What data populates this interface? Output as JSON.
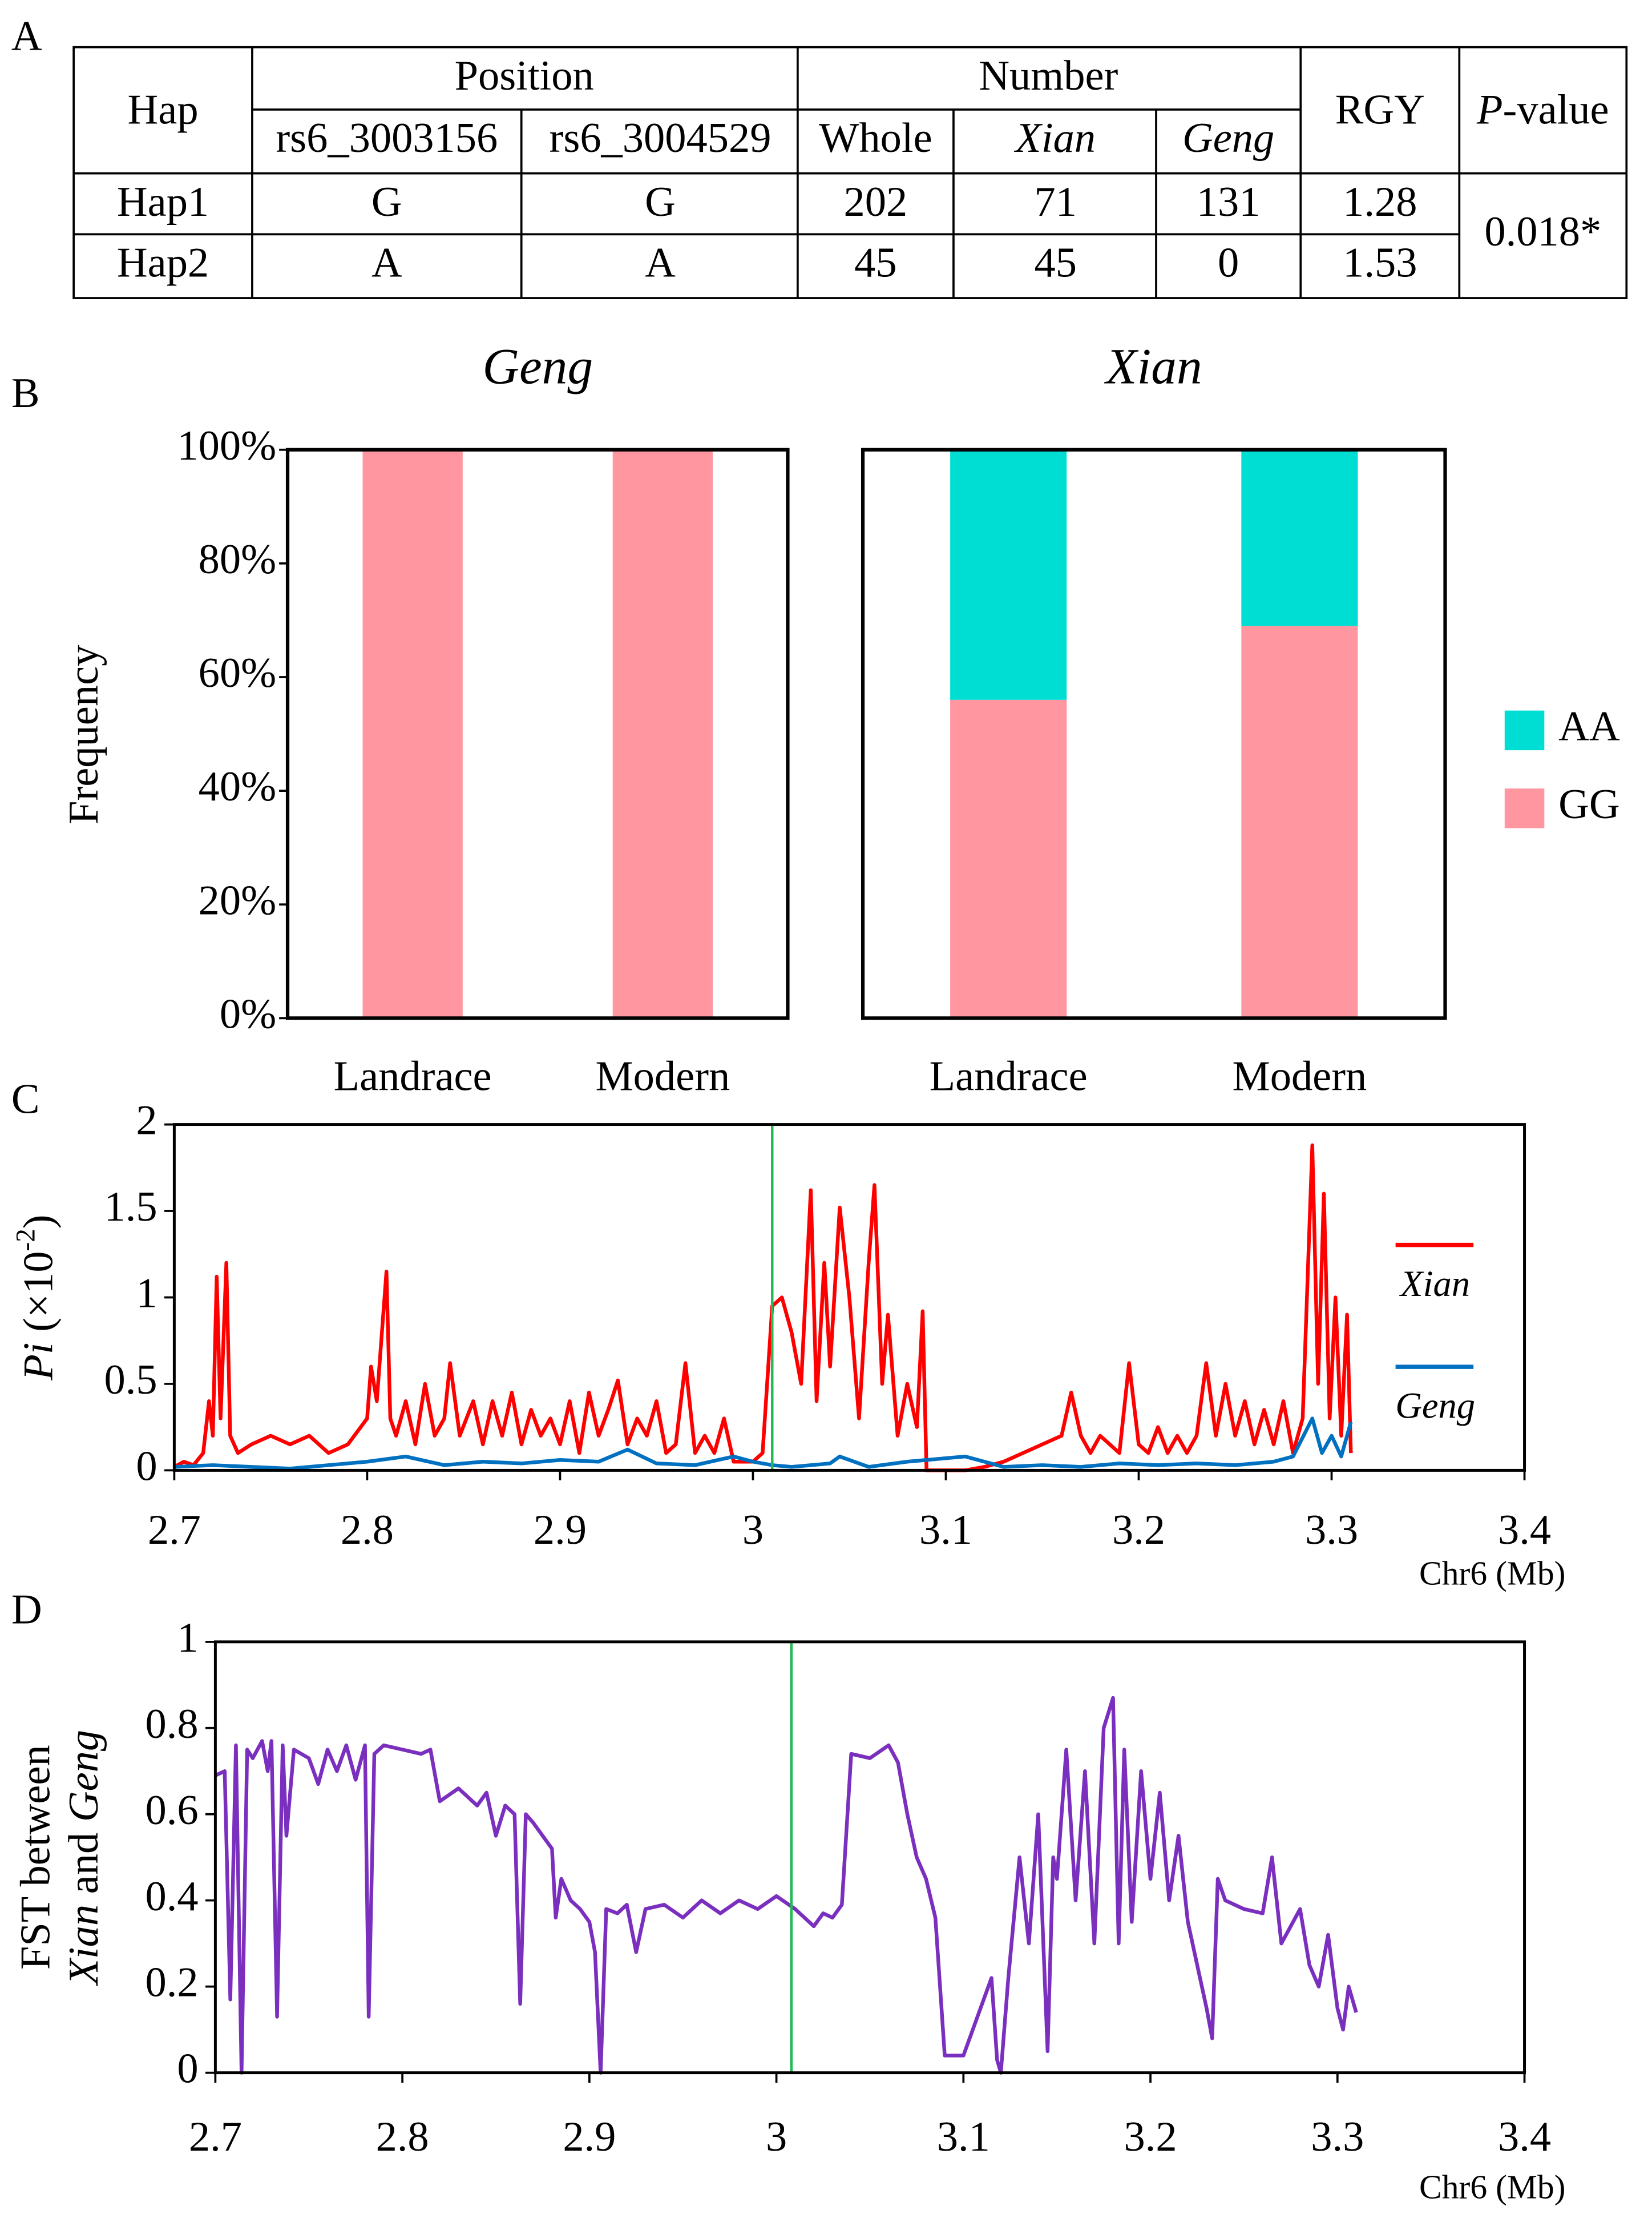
{
  "panel_labels": [
    "A",
    "B",
    "C",
    "D"
  ],
  "table": {
    "header": {
      "hap": "Hap",
      "position": "Position",
      "number": "Number",
      "rgy": "RGY",
      "p_value": [
        "P",
        "-value"
      ]
    },
    "subheader": [
      "rs6_3003156",
      "rs6_3004529",
      "Whole",
      "Xian",
      "Geng"
    ],
    "rows": [
      [
        "Hap1",
        "G",
        "G",
        202,
        71,
        131,
        1.28
      ],
      [
        "Hap2",
        "A",
        "A",
        45,
        45,
        0,
        1.53
      ]
    ],
    "p_value": "0.018*"
  },
  "chart_data": [
    {
      "type": "stacked_bar",
      "ylabel": "Frequency",
      "panels": [
        "Geng",
        "Xian"
      ],
      "categories": [
        "Landrace",
        "Modern"
      ],
      "ylim": [
        0,
        100
      ],
      "yticks": [
        {
          "value": 0,
          "label": "0%"
        },
        {
          "value": 20,
          "label": "20%"
        },
        {
          "value": 40,
          "label": "40%"
        },
        {
          "value": 60,
          "label": "60%"
        },
        {
          "value": 80,
          "label": "80%"
        },
        {
          "value": 100,
          "label": "100%"
        }
      ],
      "series": [
        {
          "name": "AA",
          "color": "#00DED4",
          "values": [
            [
              0,
              0
            ],
            [
              44,
              31
            ]
          ]
        },
        {
          "name": "GG",
          "color": "#FF96A0",
          "values": [
            [
              100,
              100
            ],
            [
              56,
              69
            ]
          ]
        }
      ]
    },
    {
      "type": "line",
      "ylabel": [
        "Pi",
        " (×10",
        "-2",
        ")"
      ],
      "xlabel": "Chr6 (Mb)",
      "xlim": [
        2.7,
        3.4
      ],
      "xticks": [
        2.7,
        2.8,
        2.9,
        3,
        3.1,
        3.2,
        3.3,
        3.4
      ],
      "ylim": [
        0,
        2
      ],
      "yticks": [
        0,
        0.5,
        1,
        1.5,
        2
      ],
      "vline": {
        "x": 3.01,
        "color": "#22BB55"
      },
      "series": [
        {
          "name": "Xian",
          "color": "#FF0000",
          "x": [
            2.7,
            2.705,
            2.71,
            2.715,
            2.718,
            2.72,
            2.722,
            2.724,
            2.727,
            2.729,
            2.733,
            2.74,
            2.75,
            2.76,
            2.77,
            2.78,
            2.79,
            2.8,
            2.802,
            2.805,
            2.808,
            2.81,
            2.812,
            2.815,
            2.82,
            2.825,
            2.83,
            2.835,
            2.84,
            2.843,
            2.848,
            2.855,
            2.86,
            2.865,
            2.87,
            2.875,
            2.88,
            2.885,
            2.89,
            2.895,
            2.9,
            2.905,
            2.91,
            2.915,
            2.92,
            2.925,
            2.93,
            2.935,
            2.94,
            2.945,
            2.95,
            2.955,
            2.96,
            2.965,
            2.97,
            2.975,
            2.98,
            2.985,
            2.99,
            3.0,
            3.005,
            3.01,
            3.015,
            3.02,
            3.025,
            3.03,
            3.033,
            3.037,
            3.04,
            3.045,
            3.05,
            3.055,
            3.06,
            3.063,
            3.067,
            3.07,
            3.075,
            3.08,
            3.085,
            3.088,
            3.09,
            3.1,
            3.11,
            3.12,
            3.13,
            3.14,
            3.15,
            3.16,
            3.165,
            3.17,
            3.175,
            3.18,
            3.19,
            3.195,
            3.2,
            3.205,
            3.21,
            3.215,
            3.22,
            3.225,
            3.23,
            3.235,
            3.24,
            3.245,
            3.25,
            3.255,
            3.26,
            3.265,
            3.27,
            3.275,
            3.28,
            3.285,
            3.29,
            3.293,
            3.296,
            3.299,
            3.302,
            3.305,
            3.308,
            3.31
          ],
          "values": [
            0.02,
            0.05,
            0.03,
            0.1,
            0.4,
            0.2,
            1.12,
            0.3,
            1.2,
            0.2,
            0.1,
            0.15,
            0.2,
            0.15,
            0.2,
            0.1,
            0.15,
            0.3,
            0.6,
            0.4,
            0.85,
            1.15,
            0.3,
            0.2,
            0.4,
            0.15,
            0.5,
            0.2,
            0.3,
            0.62,
            0.2,
            0.4,
            0.15,
            0.4,
            0.2,
            0.45,
            0.15,
            0.35,
            0.2,
            0.3,
            0.15,
            0.4,
            0.1,
            0.45,
            0.2,
            0.35,
            0.52,
            0.15,
            0.3,
            0.2,
            0.4,
            0.1,
            0.15,
            0.62,
            0.1,
            0.2,
            0.1,
            0.3,
            0.05,
            0.05,
            0.1,
            0.95,
            1.0,
            0.8,
            0.5,
            1.62,
            0.4,
            1.2,
            0.6,
            1.52,
            1.0,
            0.3,
            1.2,
            1.65,
            0.5,
            0.9,
            0.2,
            0.5,
            0.25,
            0.92,
            0.0,
            0.0,
            0.0,
            0.02,
            0.05,
            0.1,
            0.15,
            0.2,
            0.45,
            0.2,
            0.1,
            0.2,
            0.1,
            0.62,
            0.15,
            0.1,
            0.25,
            0.1,
            0.2,
            0.1,
            0.2,
            0.62,
            0.2,
            0.5,
            0.2,
            0.4,
            0.15,
            0.35,
            0.15,
            0.4,
            0.1,
            0.3,
            1.88,
            0.5,
            1.6,
            0.3,
            1.0,
            0.2,
            0.9,
            0.1
          ]
        },
        {
          "name": "Geng",
          "color": "#0070C0",
          "x": [
            2.7,
            2.72,
            2.74,
            2.76,
            2.78,
            2.8,
            2.82,
            2.84,
            2.86,
            2.88,
            2.9,
            2.92,
            2.935,
            2.95,
            2.97,
            2.99,
            3.0,
            3.01,
            3.02,
            3.04,
            3.045,
            3.06,
            3.08,
            3.09,
            3.11,
            3.13,
            3.15,
            3.17,
            3.19,
            3.21,
            3.23,
            3.25,
            3.27,
            3.28,
            3.29,
            3.295,
            3.3,
            3.305,
            3.31
          ],
          "values": [
            0.02,
            0.03,
            0.02,
            0.01,
            0.03,
            0.05,
            0.08,
            0.03,
            0.05,
            0.04,
            0.06,
            0.05,
            0.12,
            0.04,
            0.03,
            0.08,
            0.05,
            0.03,
            0.02,
            0.04,
            0.08,
            0.02,
            0.05,
            0.06,
            0.08,
            0.02,
            0.03,
            0.02,
            0.04,
            0.03,
            0.04,
            0.03,
            0.05,
            0.08,
            0.3,
            0.1,
            0.2,
            0.08,
            0.28
          ]
        }
      ]
    },
    {
      "type": "line",
      "ylabel": [
        "FST between",
        "Xian",
        " and ",
        "Geng"
      ],
      "xlabel": "Chr6 (Mb)",
      "xlim": [
        2.7,
        3.4
      ],
      "xticks": [
        2.7,
        2.8,
        2.9,
        3,
        3.1,
        3.2,
        3.3,
        3.4
      ],
      "ylim": [
        0,
        1
      ],
      "yticks": [
        0,
        0.2,
        0.4,
        0.6,
        0.8,
        1
      ],
      "vline": {
        "x": 3.008,
        "color": "#22BB55"
      },
      "series": [
        {
          "color": "#7B2FBE",
          "x": [
            2.7,
            2.705,
            2.708,
            2.711,
            2.714,
            2.717,
            2.72,
            2.725,
            2.728,
            2.73,
            2.733,
            2.736,
            2.738,
            2.742,
            2.75,
            2.755,
            2.76,
            2.765,
            2.77,
            2.775,
            2.78,
            2.782,
            2.785,
            2.79,
            2.8,
            2.81,
            2.815,
            2.82,
            2.83,
            2.84,
            2.845,
            2.85,
            2.855,
            2.86,
            2.863,
            2.866,
            2.87,
            2.875,
            2.88,
            2.882,
            2.885,
            2.89,
            2.895,
            2.9,
            2.903,
            2.906,
            2.909,
            2.915,
            2.92,
            2.925,
            2.93,
            2.94,
            2.95,
            2.96,
            2.97,
            2.98,
            2.99,
            3.0,
            3.01,
            3.02,
            3.025,
            3.03,
            3.035,
            3.04,
            3.05,
            3.06,
            3.065,
            3.07,
            3.075,
            3.08,
            3.085,
            3.09,
            3.1,
            3.115,
            3.118,
            3.12,
            3.124,
            3.13,
            3.135,
            3.14,
            3.145,
            3.148,
            3.15,
            3.155,
            3.16,
            3.165,
            3.17,
            3.175,
            3.18,
            3.183,
            3.186,
            3.19,
            3.195,
            3.2,
            3.205,
            3.21,
            3.215,
            3.22,
            3.23,
            3.233,
            3.236,
            3.24,
            3.25,
            3.26,
            3.265,
            3.27,
            3.28,
            3.285,
            3.29,
            3.295,
            3.3,
            3.303,
            3.306,
            3.31
          ],
          "values": [
            0.69,
            0.7,
            0.17,
            0.76,
            0.0,
            0.75,
            0.73,
            0.77,
            0.7,
            0.77,
            0.13,
            0.76,
            0.55,
            0.75,
            0.73,
            0.67,
            0.75,
            0.7,
            0.76,
            0.68,
            0.76,
            0.13,
            0.74,
            0.76,
            0.75,
            0.74,
            0.75,
            0.63,
            0.66,
            0.62,
            0.65,
            0.55,
            0.62,
            0.6,
            0.16,
            0.6,
            0.58,
            0.55,
            0.52,
            0.36,
            0.45,
            0.4,
            0.38,
            0.35,
            0.28,
            0.0,
            0.38,
            0.37,
            0.39,
            0.28,
            0.38,
            0.39,
            0.36,
            0.4,
            0.37,
            0.4,
            0.38,
            0.41,
            0.38,
            0.34,
            0.37,
            0.36,
            0.39,
            0.74,
            0.73,
            0.76,
            0.72,
            0.6,
            0.5,
            0.45,
            0.36,
            0.04,
            0.04,
            0.22,
            0.03,
            0.0,
            0.22,
            0.5,
            0.3,
            0.6,
            0.05,
            0.5,
            0.45,
            0.75,
            0.4,
            0.7,
            0.3,
            0.8,
            0.87,
            0.3,
            0.75,
            0.35,
            0.7,
            0.45,
            0.65,
            0.4,
            0.55,
            0.35,
            0.15,
            0.08,
            0.45,
            0.4,
            0.38,
            0.37,
            0.5,
            0.3,
            0.38,
            0.25,
            0.2,
            0.32,
            0.15,
            0.1,
            0.2,
            0.14
          ]
        }
      ]
    }
  ]
}
